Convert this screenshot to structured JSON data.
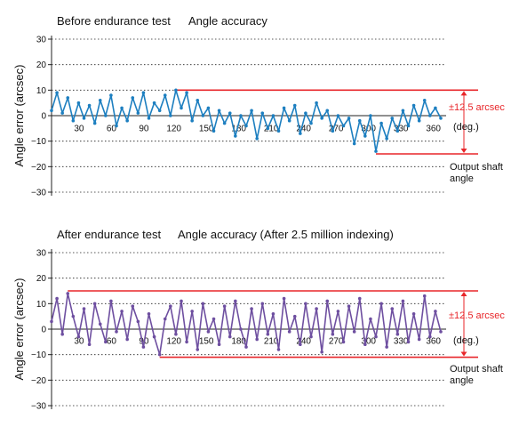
{
  "colors": {
    "band": "#e8262a",
    "grid": "#222222",
    "text": "#111111"
  },
  "chart_data": [
    {
      "type": "line",
      "title": "Before endurance test",
      "subtitle": "Angle accuracy",
      "ylabel": "Angle error (arcsec)",
      "xlabel": "",
      "ylim": [
        -30,
        30
      ],
      "xlim": [
        0,
        360
      ],
      "y_ticks": [
        "30",
        "20",
        "10",
        "0",
        "−10",
        "−20",
        "−30"
      ],
      "x_ticks": [
        "30",
        "60",
        "90",
        "120",
        "150",
        "180",
        "210",
        "240",
        "270",
        "300",
        "330",
        "360"
      ],
      "x_unit": "(deg.)",
      "x_axis_name": [
        "Output shaft",
        "angle"
      ],
      "grid": "horizontal dotted",
      "band": {
        "upper": 10,
        "lower": -15,
        "label": "±12.5 arcsec"
      },
      "series": [
        {
          "color": "#1d7fc0",
          "x": [
            0,
            5,
            10,
            15,
            20,
            25,
            30,
            35,
            40,
            45,
            50,
            55,
            60,
            65,
            70,
            75,
            80,
            85,
            90,
            95,
            100,
            105,
            110,
            115,
            120,
            125,
            130,
            135,
            140,
            145,
            150,
            155,
            160,
            165,
            170,
            175,
            180,
            185,
            190,
            195,
            200,
            205,
            210,
            215,
            220,
            225,
            230,
            235,
            240,
            245,
            250,
            255,
            260,
            265,
            270,
            275,
            280,
            285,
            290,
            295,
            300,
            305,
            310,
            315,
            320,
            325,
            330,
            335,
            340,
            345,
            350,
            355,
            360
          ],
          "y": [
            2,
            9,
            1,
            7,
            -2,
            5,
            -1,
            4,
            -3,
            6,
            0,
            8,
            -4,
            3,
            -2,
            7,
            1,
            9,
            -1,
            5,
            2,
            8,
            0,
            10,
            3,
            9,
            -2,
            6,
            0,
            3,
            -6,
            2,
            -3,
            1,
            -8,
            0,
            -4,
            2,
            -9,
            1,
            -5,
            0,
            -6,
            3,
            -2,
            4,
            -7,
            1,
            -3,
            5,
            -1,
            2,
            -6,
            0,
            -4,
            -1,
            -11,
            -2,
            -8,
            0,
            -14,
            -3,
            -9,
            -1,
            -6,
            2,
            -4,
            4,
            -2,
            6,
            0,
            3,
            -1
          ]
        }
      ]
    },
    {
      "type": "line",
      "title": "After endurance test",
      "subtitle": "Angle accuracy (After 2.5 million indexing)",
      "ylabel": "Angle error (arcsec)",
      "xlabel": "",
      "ylim": [
        -30,
        30
      ],
      "xlim": [
        0,
        360
      ],
      "y_ticks": [
        "30",
        "20",
        "10",
        "0",
        "−10",
        "−20",
        "−30"
      ],
      "x_ticks": [
        "30",
        "60",
        "90",
        "120",
        "150",
        "180",
        "210",
        "240",
        "270",
        "300",
        "330",
        "360"
      ],
      "x_unit": "(deg.)",
      "x_axis_name": [
        "Output shaft",
        "angle"
      ],
      "grid": "horizontal dotted",
      "band": {
        "upper": 15,
        "lower": -11,
        "label": "±12.5 arcsec"
      },
      "series": [
        {
          "color": "#6e4fa0",
          "x": [
            0,
            5,
            10,
            15,
            20,
            25,
            30,
            35,
            40,
            45,
            50,
            55,
            60,
            65,
            70,
            75,
            80,
            85,
            90,
            95,
            100,
            105,
            110,
            115,
            120,
            125,
            130,
            135,
            140,
            145,
            150,
            155,
            160,
            165,
            170,
            175,
            180,
            185,
            190,
            195,
            200,
            205,
            210,
            215,
            220,
            225,
            230,
            235,
            240,
            245,
            250,
            255,
            260,
            265,
            270,
            275,
            280,
            285,
            290,
            295,
            300,
            305,
            310,
            315,
            320,
            325,
            330,
            335,
            340,
            345,
            350,
            355,
            360
          ],
          "y": [
            3,
            12,
            -2,
            14,
            5,
            -3,
            8,
            -6,
            10,
            2,
            -5,
            11,
            -1,
            7,
            -4,
            9,
            3,
            -7,
            6,
            -3,
            -10,
            4,
            9,
            -2,
            11,
            -5,
            7,
            -8,
            10,
            -1,
            4,
            -6,
            9,
            -3,
            11,
            0,
            -7,
            8,
            -4,
            10,
            -2,
            6,
            -8,
            12,
            -1,
            5,
            -6,
            10,
            -3,
            8,
            -9,
            11,
            -2,
            7,
            -5,
            9,
            -1,
            12,
            -6,
            4,
            -3,
            10,
            -7,
            8,
            -2,
            11,
            -5,
            6,
            -4,
            13,
            -3,
            7,
            -1
          ]
        }
      ]
    }
  ]
}
